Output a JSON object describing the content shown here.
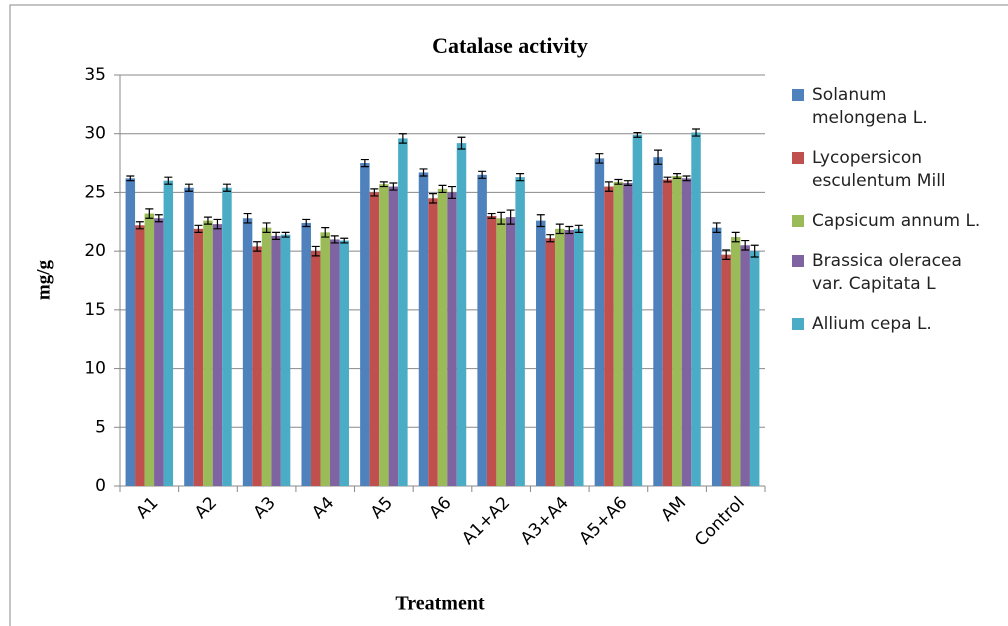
{
  "chart_data": {
    "type": "bar",
    "title": "Catalase activity",
    "x_label": "Treatment",
    "y_label": "mg/g",
    "categories": [
      "A1",
      "A2",
      "A3",
      "A4",
      "A5",
      "A6",
      "A1+A2",
      "A3+A4",
      "A5+A6",
      "AM",
      "Control"
    ],
    "series": [
      {
        "name": "Solanum melongena L.",
        "color": "#4F81BD",
        "values": [
          26.2,
          25.4,
          22.8,
          22.4,
          27.5,
          26.7,
          26.5,
          22.6,
          27.9,
          28.0,
          22.0
        ],
        "errors": [
          0.2,
          0.3,
          0.4,
          0.3,
          0.3,
          0.3,
          0.3,
          0.5,
          0.4,
          0.6,
          0.4
        ]
      },
      {
        "name": "Lycopersicon esculentum Mill",
        "color": "#C0504D",
        "values": [
          22.2,
          21.9,
          20.4,
          20.0,
          25.0,
          24.5,
          23.0,
          21.1,
          25.5,
          26.1,
          19.7
        ],
        "errors": [
          0.3,
          0.3,
          0.4,
          0.4,
          0.3,
          0.4,
          0.2,
          0.3,
          0.4,
          0.2,
          0.4
        ]
      },
      {
        "name": "Capsicum annum L.",
        "color": "#9BBB59",
        "values": [
          23.2,
          22.6,
          22.0,
          21.6,
          25.7,
          25.3,
          22.8,
          21.9,
          25.9,
          26.4,
          21.2
        ],
        "errors": [
          0.4,
          0.3,
          0.4,
          0.4,
          0.2,
          0.3,
          0.5,
          0.4,
          0.2,
          0.2,
          0.4
        ]
      },
      {
        "name": "Brassica oleracea var. Capitata L",
        "color": "#8064A2",
        "values": [
          22.8,
          22.3,
          21.3,
          21.0,
          25.5,
          25.0,
          22.9,
          21.8,
          25.8,
          26.2,
          20.5
        ],
        "errors": [
          0.3,
          0.4,
          0.3,
          0.3,
          0.3,
          0.5,
          0.6,
          0.3,
          0.2,
          0.2,
          0.4
        ]
      },
      {
        "name": "Allium cepa L.",
        "color": "#4BACC6",
        "values": [
          26.0,
          25.4,
          21.4,
          20.9,
          29.6,
          29.2,
          26.3,
          21.9,
          29.9,
          30.1,
          20.0
        ],
        "errors": [
          0.3,
          0.3,
          0.2,
          0.2,
          0.4,
          0.5,
          0.3,
          0.3,
          0.2,
          0.3,
          0.5
        ]
      }
    ],
    "ylim": [
      0,
      35
    ],
    "yticks": [
      0,
      5,
      10,
      15,
      20,
      25,
      30,
      35
    ],
    "grid": true,
    "legend": "right"
  }
}
